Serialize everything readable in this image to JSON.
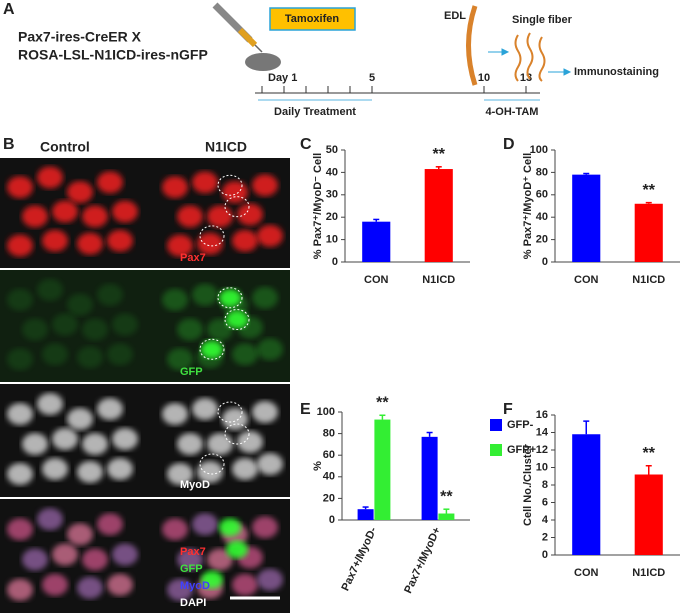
{
  "panel_a": {
    "label": "A",
    "genotype": [
      "Pax7-ires-CreER X",
      "ROSA-LSL-N1ICD-ires-nGFP"
    ],
    "drug": "Tamoxifen",
    "timeline": [
      "Day 1",
      "5",
      "10",
      "13"
    ],
    "treatment": "Daily Treatment",
    "ex_vivo": "4-OH-TAM",
    "muscle": "EDL",
    "fiber": "Single fiber",
    "readout": "Immunostaining"
  },
  "panel_b": {
    "label": "B",
    "columns": [
      "Control",
      "N1ICD"
    ],
    "rows": [
      "Pax7",
      "GFP",
      "MyoD"
    ],
    "merge": [
      "Pax7",
      "GFP",
      "MyoD",
      "DAPI"
    ]
  },
  "chart_data": [
    {
      "type": "bar",
      "label": "C",
      "ylabel": "% Pax7⁺/MyoD⁻ Cell",
      "categories": [
        "CON",
        "N1ICD"
      ],
      "values": [
        18,
        41.5
      ],
      "errors": [
        1,
        1
      ],
      "colors": [
        "#0000ff",
        "#ff0000"
      ],
      "ylim": [
        0,
        50
      ],
      "yticks": [
        0,
        10,
        20,
        30,
        40,
        50
      ],
      "annotations": [
        {
          "text": "**",
          "category": "N1ICD"
        }
      ]
    },
    {
      "type": "bar",
      "label": "D",
      "ylabel": "% Pax7⁺/MyoD⁺ Cell",
      "categories": [
        "CON",
        "N1ICD"
      ],
      "values": [
        78,
        52
      ],
      "errors": [
        1,
        1
      ],
      "colors": [
        "#0000ff",
        "#ff0000"
      ],
      "ylim": [
        0,
        100
      ],
      "yticks": [
        0,
        20,
        40,
        60,
        80,
        100
      ],
      "annotations": [
        {
          "text": "**",
          "category": "N1ICD"
        }
      ]
    },
    {
      "type": "bar",
      "label": "E",
      "ylabel": "%",
      "categories": [
        "Pax7+/MyoD-",
        "Pax7+/MyoD+"
      ],
      "series": [
        {
          "name": "GFP-",
          "color": "#0000ff",
          "values": [
            10,
            77
          ],
          "errors": [
            2,
            4
          ]
        },
        {
          "name": "GFP+",
          "color": "#33ee33",
          "values": [
            93,
            6
          ],
          "errors": [
            4,
            4
          ]
        }
      ],
      "ylim": [
        0,
        100
      ],
      "yticks": [
        0,
        20,
        40,
        60,
        80,
        100
      ],
      "annotations": [
        {
          "text": "**",
          "category": "Pax7+/MyoD-",
          "series": "GFP+"
        },
        {
          "text": "**",
          "category": "Pax7+/MyoD+",
          "series": "GFP+"
        }
      ]
    },
    {
      "type": "bar",
      "label": "F",
      "ylabel": "Cell No./Cluster",
      "categories": [
        "CON",
        "N1ICD"
      ],
      "values": [
        13.8,
        9.2
      ],
      "errors": [
        1.5,
        1
      ],
      "colors": [
        "#0000ff",
        "#ff0000"
      ],
      "ylim": [
        0,
        16
      ],
      "yticks": [
        0,
        2,
        4,
        6,
        8,
        10,
        12,
        14,
        16
      ],
      "annotations": [
        {
          "text": "**",
          "category": "N1ICD"
        }
      ]
    }
  ]
}
